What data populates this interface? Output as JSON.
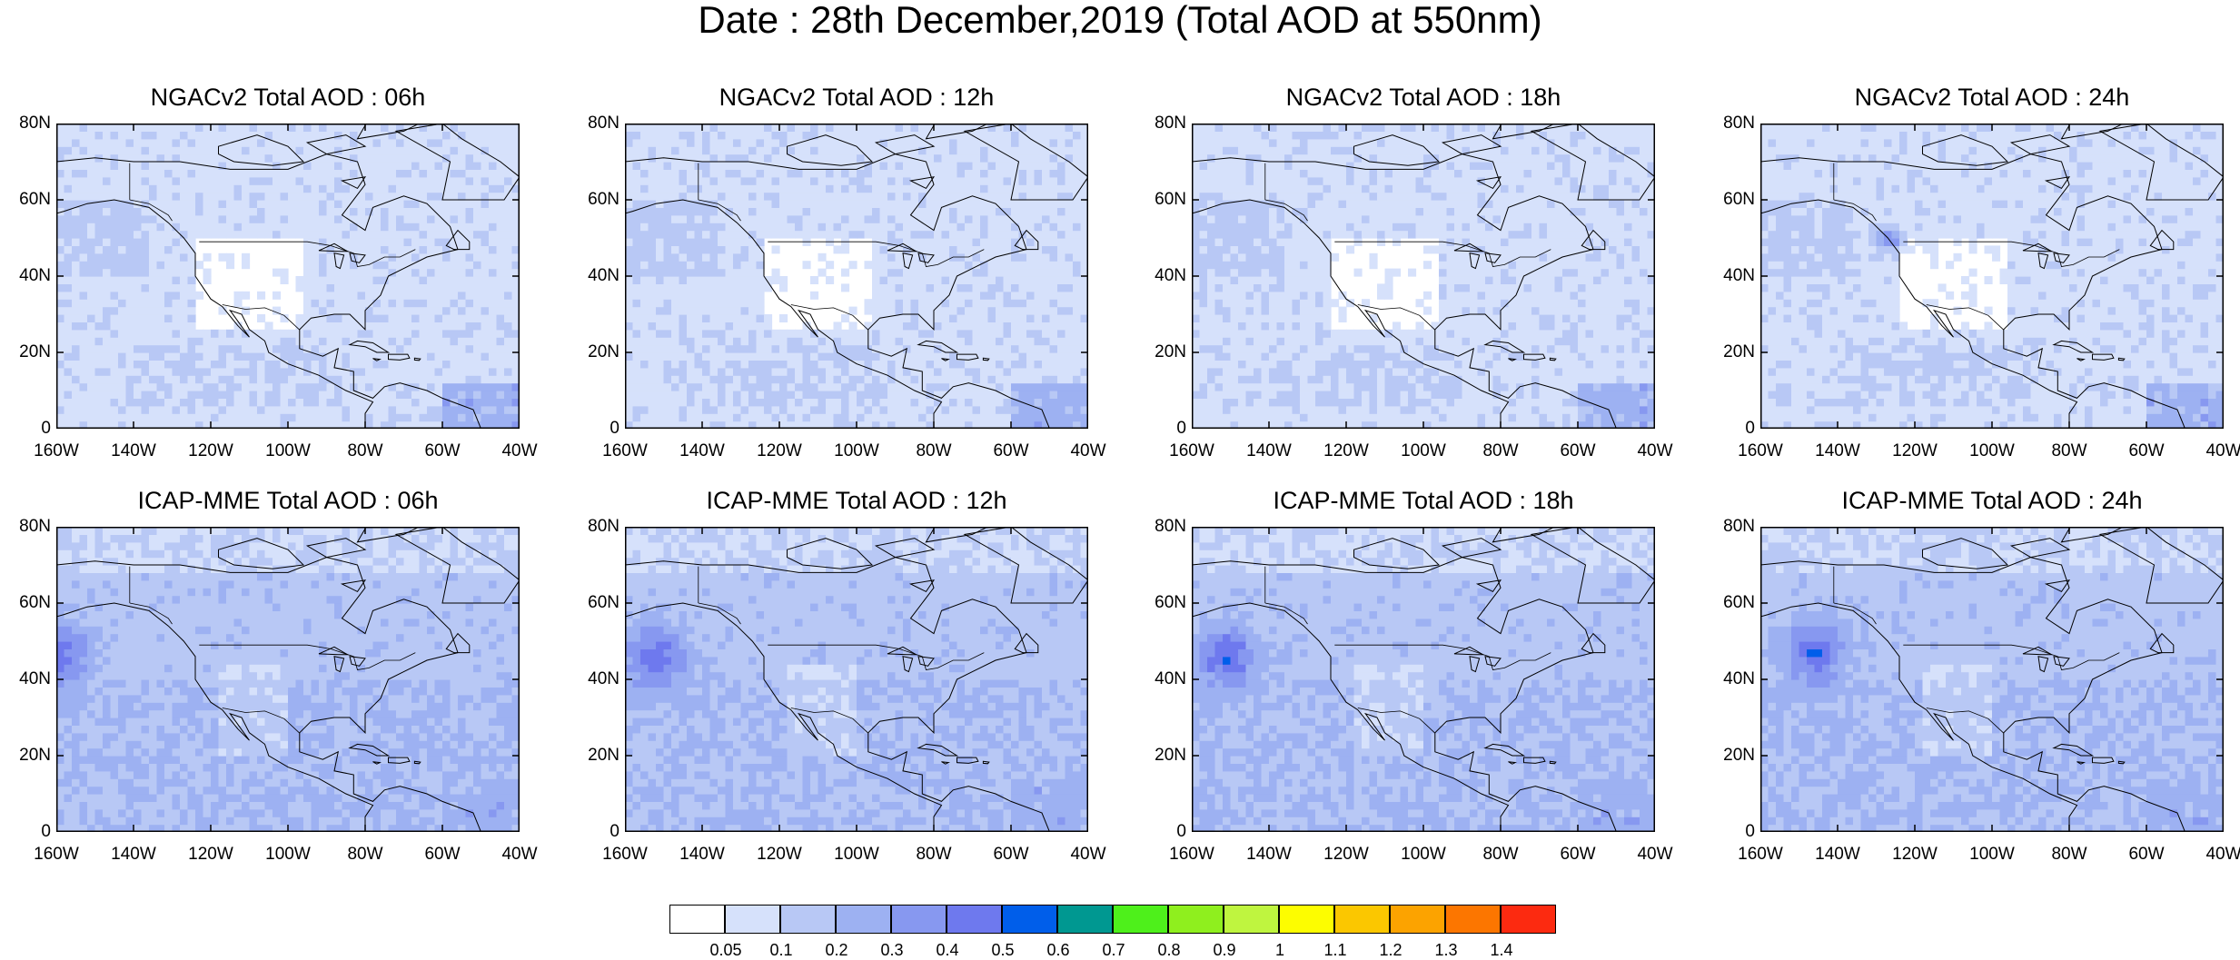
{
  "title": "Date : 28th December,2019 (Total AOD at 550nm)",
  "panels": [
    {
      "title": "NGACv2 Total AOD : 06h"
    },
    {
      "title": "NGACv2 Total AOD : 12h"
    },
    {
      "title": "NGACv2 Total AOD : 18h"
    },
    {
      "title": "NGACv2 Total AOD : 24h"
    },
    {
      "title": "ICAP-MME Total AOD : 06h"
    },
    {
      "title": "ICAP-MME Total AOD : 12h"
    },
    {
      "title": "ICAP-MME Total AOD : 18h"
    },
    {
      "title": "ICAP-MME Total AOD : 24h"
    }
  ],
  "lat_ticks": [
    "80N",
    "60N",
    "40N",
    "20N",
    "0"
  ],
  "lon_ticks": [
    "160W",
    "140W",
    "120W",
    "100W",
    "80W",
    "60W",
    "40W"
  ],
  "colorbar": {
    "colors": [
      "#ffffff",
      "#d6e1fb",
      "#b8c8f5",
      "#9db1f2",
      "#8798f0",
      "#6e79ee",
      "#005eea",
      "#009891",
      "#4ef01b",
      "#8fef1e",
      "#bff53f",
      "#fdfd00",
      "#fbc700",
      "#fca300",
      "#fc7600",
      "#fc2a10"
    ],
    "labels": [
      "0.05",
      "0.1",
      "0.2",
      "0.3",
      "0.4",
      "0.5",
      "0.6",
      "0.7",
      "0.8",
      "0.9",
      "1",
      "1.1",
      "1.2",
      "1.3",
      "1.4"
    ]
  }
}
